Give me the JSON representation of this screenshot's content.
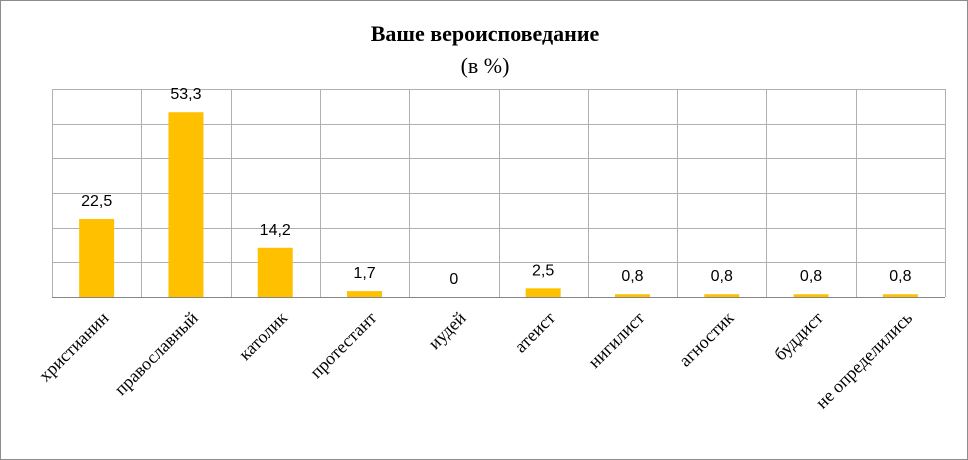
{
  "chart_data": {
    "type": "bar",
    "title": "Ваше вероисповедание",
    "subtitle": "(в %)",
    "categories": [
      "христианин",
      "православный",
      "католик",
      "протестант",
      "иудей",
      "атеист",
      "нигилист",
      "агностик",
      "буддист",
      "не определились"
    ],
    "values": [
      22.5,
      53.3,
      14.2,
      1.7,
      0,
      2.5,
      0.8,
      0.8,
      0.8,
      0.8
    ],
    "value_labels": [
      "22,5",
      "53,3",
      "14,2",
      "1,7",
      "0",
      "2,5",
      "0,8",
      "0,8",
      "0,8",
      "0,8"
    ],
    "xlabel": "",
    "ylabel": "",
    "ylim": [
      0,
      60
    ],
    "grid": true,
    "legend": "none",
    "bar_color": "#ffc000"
  }
}
